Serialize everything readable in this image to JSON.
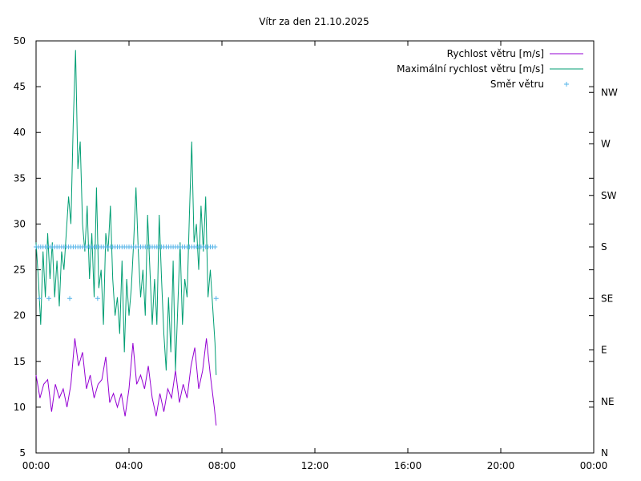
{
  "chart_data": {
    "type": "line",
    "title": "Vítr za den 21.10.2025",
    "xlabel": "",
    "ylabel": "",
    "x_ticks": [
      "00:00",
      "04:00",
      "08:00",
      "12:00",
      "16:00",
      "20:00",
      "00:00"
    ],
    "x_tick_hours": [
      0,
      4,
      8,
      12,
      16,
      20,
      24
    ],
    "xlim_hours": [
      0,
      24
    ],
    "ylim": [
      5,
      50
    ],
    "y_ticks": [
      5,
      10,
      15,
      20,
      25,
      30,
      35,
      40,
      45,
      50
    ],
    "y2_ticks": [
      "N",
      "NE",
      "E",
      "SE",
      "S",
      "SW",
      "W",
      "NW"
    ],
    "y2lim_degrees": [
      0,
      360
    ],
    "grid": false,
    "legend_position": "top-right",
    "colors": {
      "speed": "#9400d3",
      "gust": "#009e73",
      "direction": "#56b4e9"
    },
    "series": [
      {
        "name": "Rychlost větru [m/s]",
        "axis": "y1",
        "style": "line",
        "x_hours": [
          0.0,
          0.17,
          0.33,
          0.5,
          0.67,
          0.83,
          1.0,
          1.17,
          1.33,
          1.5,
          1.67,
          1.83,
          2.0,
          2.17,
          2.33,
          2.5,
          2.67,
          2.83,
          3.0,
          3.17,
          3.33,
          3.5,
          3.67,
          3.83,
          4.0,
          4.17,
          4.33,
          4.5,
          4.67,
          4.83,
          5.0,
          5.17,
          5.33,
          5.5,
          5.67,
          5.83,
          6.0,
          6.17,
          6.33,
          6.5,
          6.67,
          6.83,
          7.0,
          7.17,
          7.33,
          7.5,
          7.67,
          7.75
        ],
        "values": [
          13.5,
          11,
          12.5,
          13,
          9.5,
          12.5,
          11,
          12,
          10,
          12.5,
          17.5,
          14.5,
          16,
          12,
          13.5,
          11,
          12.5,
          13,
          15.5,
          10.5,
          11.5,
          10,
          11.5,
          9,
          12,
          17,
          12.5,
          13.5,
          12,
          14.5,
          11,
          9,
          11.5,
          9.5,
          12,
          11,
          14,
          10.5,
          12.5,
          11,
          14.5,
          16.5,
          12,
          14,
          17.5,
          13.5,
          10,
          8
        ]
      },
      {
        "name": "Maximální rychlost větru [m/s]",
        "axis": "y1",
        "style": "line",
        "x_hours": [
          0.0,
          0.1,
          0.2,
          0.3,
          0.4,
          0.5,
          0.6,
          0.7,
          0.8,
          0.9,
          1.0,
          1.1,
          1.2,
          1.3,
          1.4,
          1.5,
          1.6,
          1.7,
          1.8,
          1.9,
          2.0,
          2.1,
          2.2,
          2.3,
          2.4,
          2.5,
          2.6,
          2.7,
          2.8,
          2.9,
          3.0,
          3.1,
          3.2,
          3.3,
          3.4,
          3.5,
          3.6,
          3.7,
          3.8,
          3.9,
          4.0,
          4.1,
          4.2,
          4.3,
          4.4,
          4.5,
          4.6,
          4.7,
          4.8,
          4.9,
          5.0,
          5.1,
          5.2,
          5.3,
          5.4,
          5.5,
          5.6,
          5.7,
          5.8,
          5.9,
          6.0,
          6.1,
          6.2,
          6.3,
          6.4,
          6.5,
          6.6,
          6.7,
          6.8,
          6.9,
          7.0,
          7.1,
          7.2,
          7.3,
          7.4,
          7.5,
          7.6,
          7.7,
          7.75
        ],
        "values": [
          28,
          24,
          19,
          27,
          22,
          29,
          24,
          28,
          22,
          26,
          21,
          27,
          25,
          29,
          33,
          30,
          41,
          49,
          36,
          39,
          30,
          27,
          32,
          24,
          29,
          22,
          34,
          23,
          25,
          19,
          29,
          27,
          32,
          24,
          20,
          22,
          18,
          26,
          16,
          24,
          20,
          23,
          28,
          34,
          27,
          22,
          25,
          20,
          31,
          25,
          19,
          24,
          19,
          31,
          24,
          18,
          14,
          22,
          16,
          26,
          14,
          21,
          28,
          19,
          24,
          22,
          31,
          39,
          28,
          30,
          25,
          32,
          27,
          33,
          22,
          25,
          21,
          17,
          13.5
        ]
      },
      {
        "name": "Směr větru",
        "axis": "y2",
        "style": "points",
        "x_hours": [
          0.0,
          0.1,
          0.2,
          0.3,
          0.4,
          0.5,
          0.6,
          0.7,
          0.8,
          0.9,
          1.0,
          1.1,
          1.2,
          1.3,
          1.4,
          1.5,
          1.6,
          1.7,
          1.8,
          1.9,
          2.0,
          2.1,
          2.2,
          2.3,
          2.4,
          2.5,
          2.6,
          2.7,
          2.8,
          2.9,
          3.0,
          3.1,
          3.2,
          3.3,
          3.4,
          3.5,
          3.6,
          3.7,
          3.8,
          3.9,
          4.0,
          4.1,
          4.2,
          4.3,
          4.4,
          4.5,
          4.6,
          4.7,
          4.8,
          4.9,
          5.0,
          5.1,
          5.2,
          5.3,
          5.4,
          5.5,
          5.6,
          5.7,
          5.8,
          5.9,
          6.0,
          6.1,
          6.2,
          6.3,
          6.4,
          6.5,
          6.6,
          6.7,
          6.8,
          6.9,
          7.0,
          7.1,
          7.2,
          7.3,
          7.4,
          7.5,
          7.6,
          7.7,
          0.15,
          0.55,
          1.45,
          2.65,
          7.75
        ],
        "values_degrees": [
          180,
          180,
          180,
          180,
          180,
          180,
          180,
          180,
          180,
          180,
          180,
          180,
          180,
          180,
          180,
          180,
          180,
          180,
          180,
          180,
          180,
          180,
          180,
          180,
          180,
          180,
          180,
          180,
          180,
          180,
          180,
          180,
          180,
          180,
          180,
          180,
          180,
          180,
          180,
          180,
          180,
          180,
          180,
          180,
          180,
          180,
          180,
          180,
          180,
          180,
          180,
          180,
          180,
          180,
          180,
          180,
          180,
          180,
          180,
          180,
          180,
          180,
          180,
          180,
          180,
          180,
          180,
          180,
          180,
          180,
          180,
          180,
          180,
          180,
          180,
          180,
          180,
          180,
          135,
          135,
          135,
          135,
          135
        ]
      }
    ]
  }
}
